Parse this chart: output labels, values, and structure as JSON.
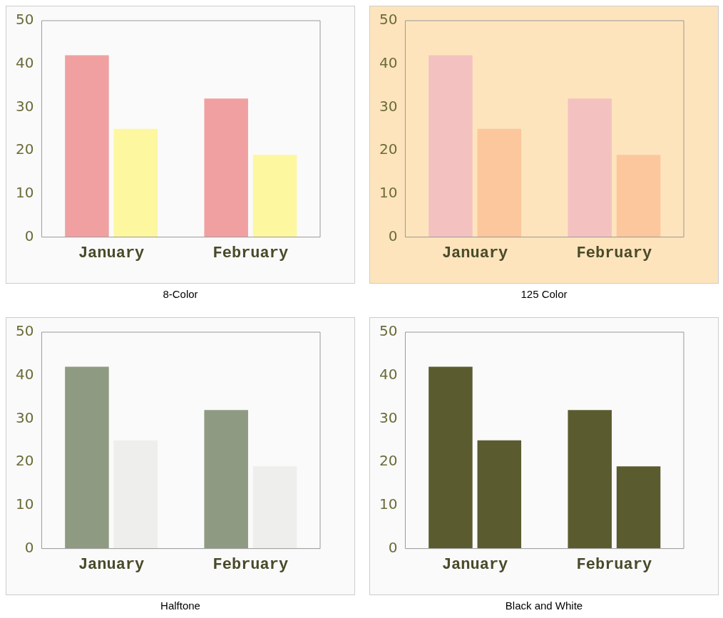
{
  "chart_data": [
    {
      "type": "bar",
      "title": "8-Color",
      "categories": [
        "January",
        "February"
      ],
      "series": [
        {
          "color": "#f0a0a0",
          "values": [
            42,
            32
          ]
        },
        {
          "color": "#fdf7a0",
          "values": [
            25,
            19
          ]
        }
      ],
      "ylim": [
        0,
        50
      ],
      "yticks": [
        0,
        10,
        20,
        30,
        40,
        50
      ],
      "grid": false,
      "legend": false
    },
    {
      "type": "bar",
      "title": "125 Color",
      "categories": [
        "January",
        "February"
      ],
      "series": [
        {
          "color": "#f3c2c0",
          "values": [
            42,
            32
          ]
        },
        {
          "color": "#fcc79c",
          "values": [
            25,
            19
          ]
        }
      ],
      "ylim": [
        0,
        50
      ],
      "yticks": [
        0,
        10,
        20,
        30,
        40,
        50
      ],
      "grid": false,
      "legend": false
    },
    {
      "type": "bar",
      "title": "Halftone",
      "categories": [
        "January",
        "February"
      ],
      "series": [
        {
          "color": "#8e9a82",
          "values": [
            42,
            32
          ]
        },
        {
          "color": "#eeeeec",
          "values": [
            25,
            19
          ]
        }
      ],
      "ylim": [
        0,
        50
      ],
      "yticks": [
        0,
        10,
        20,
        30,
        40,
        50
      ],
      "grid": false,
      "legend": false
    },
    {
      "type": "bar",
      "title": "Black and White",
      "categories": [
        "January",
        "February"
      ],
      "series": [
        {
          "color": "#5a5c30",
          "values": [
            42,
            32
          ]
        },
        {
          "color": "#5a5c30",
          "values": [
            25,
            19
          ]
        }
      ],
      "ylim": [
        0,
        50
      ],
      "yticks": [
        0,
        10,
        20,
        30,
        40,
        50
      ],
      "grid": false,
      "legend": false
    }
  ]
}
